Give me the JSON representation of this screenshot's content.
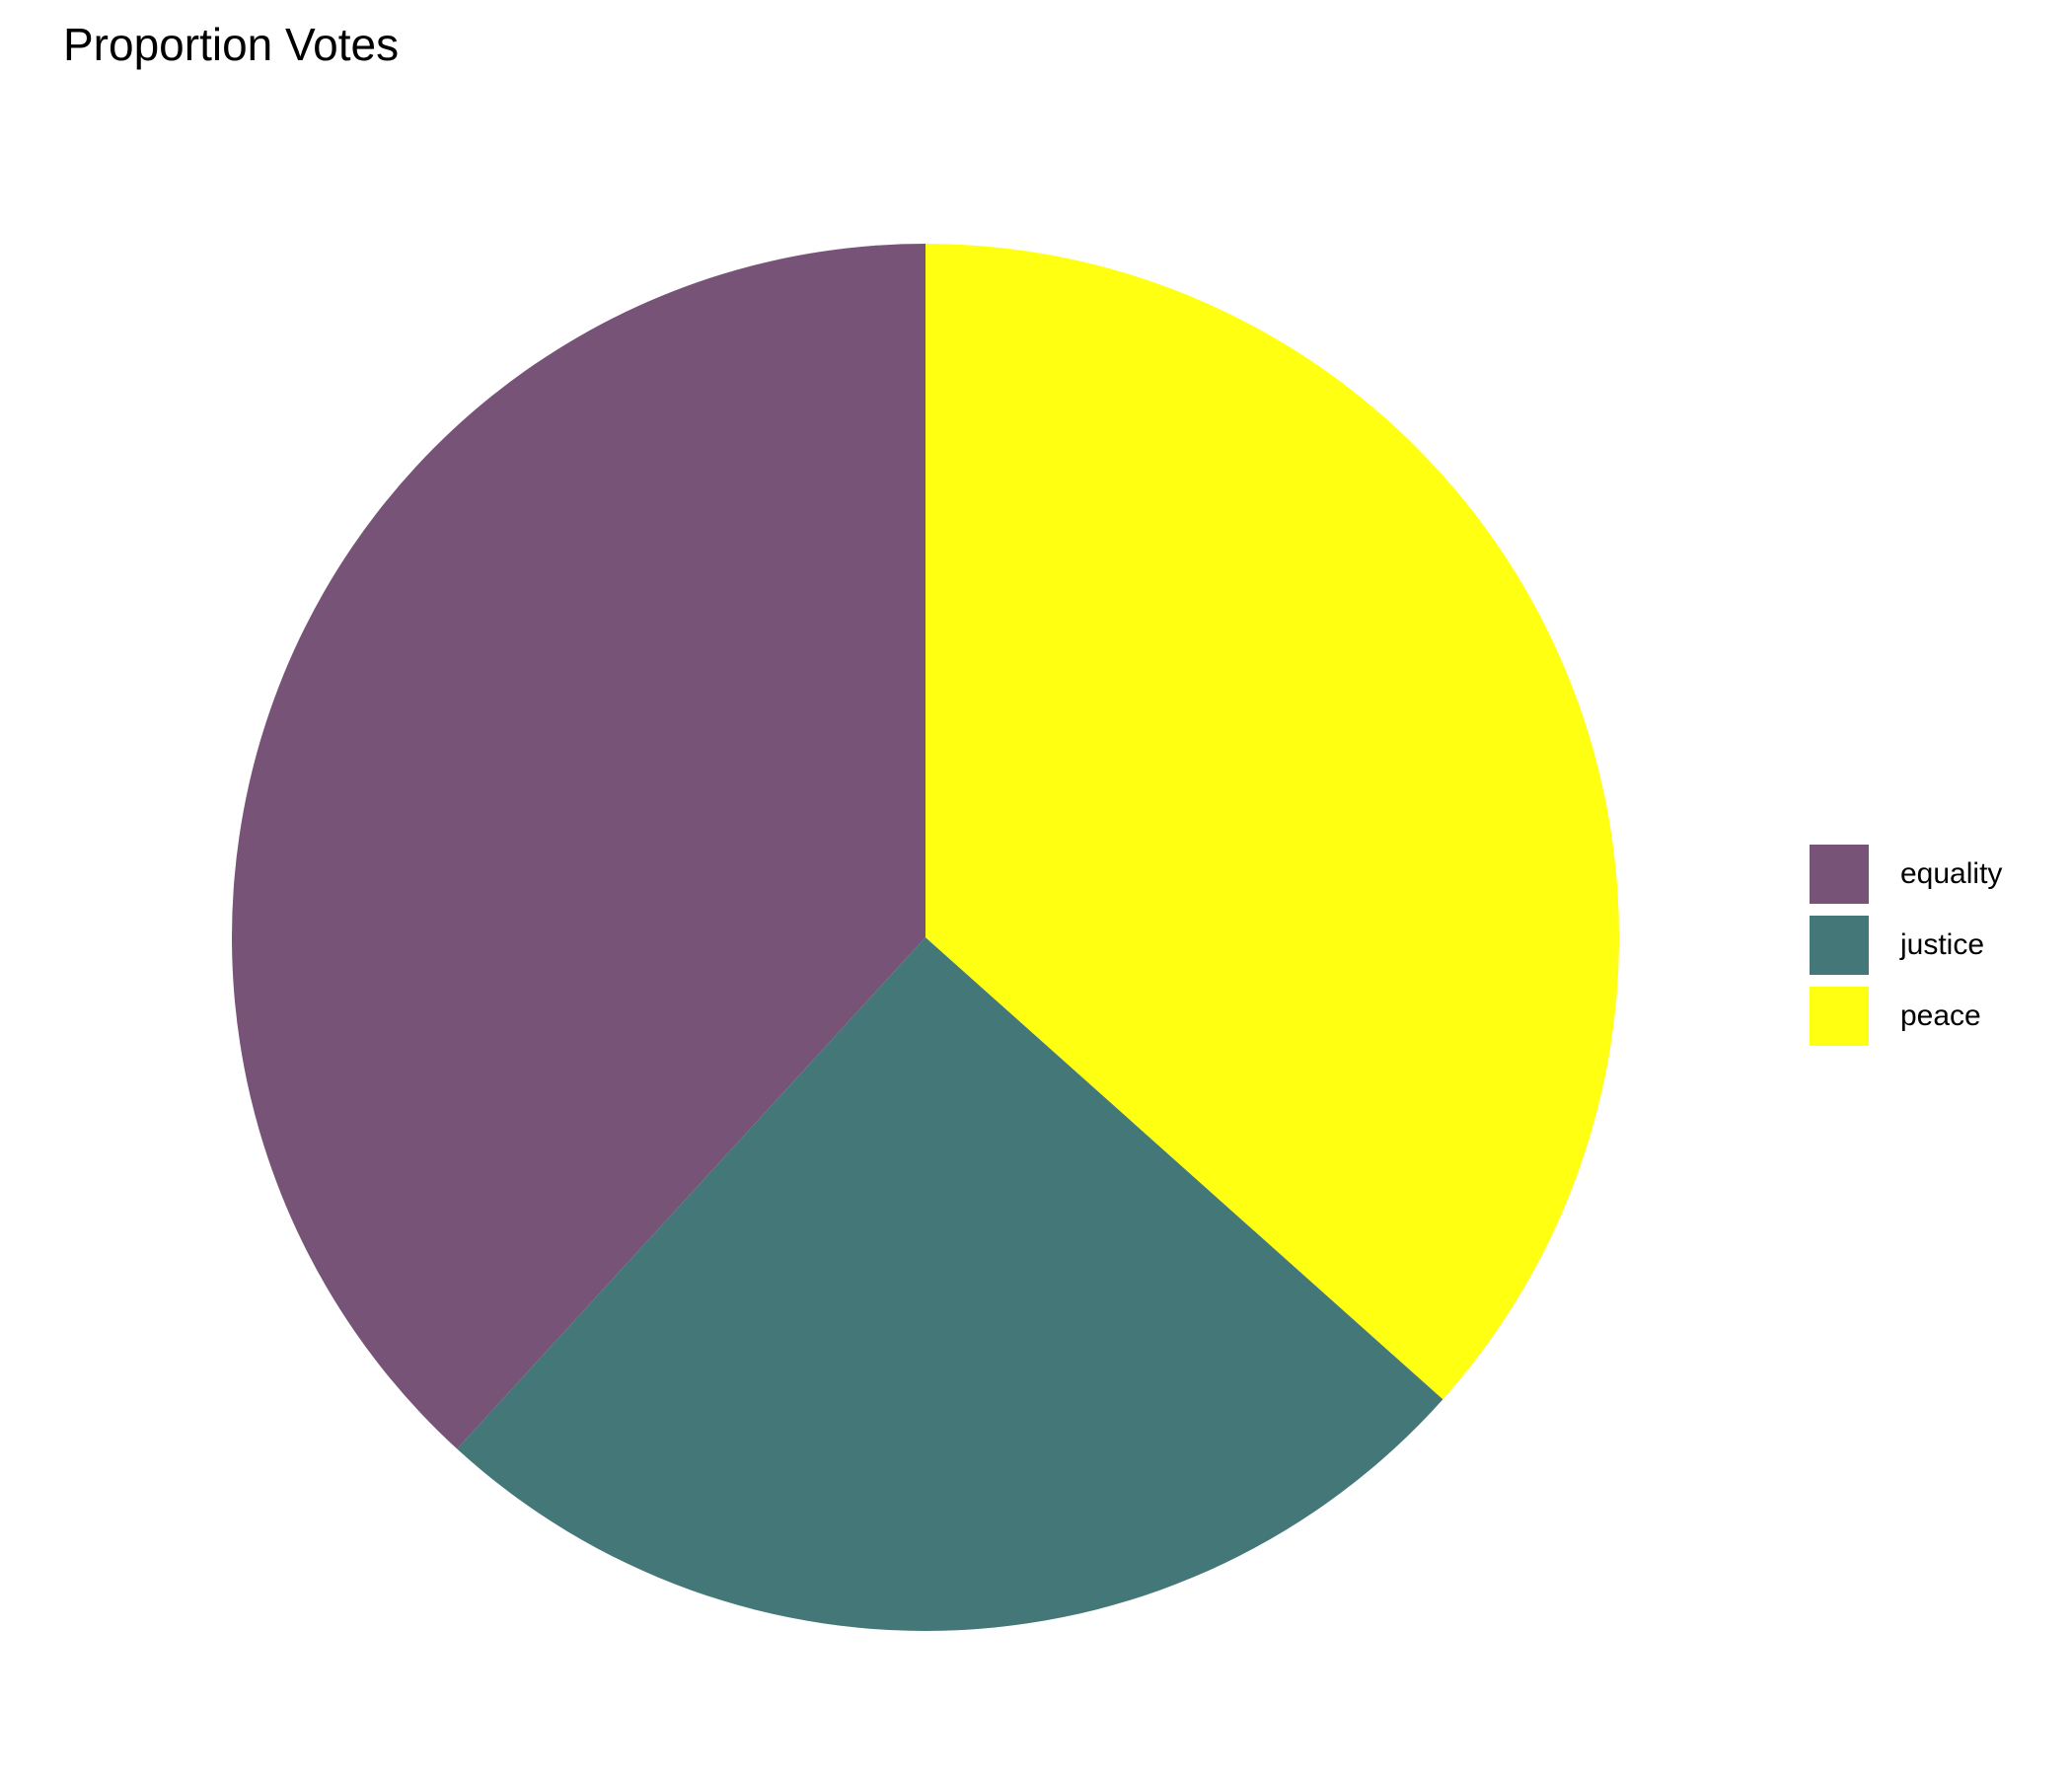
{
  "chart_data": {
    "type": "pie",
    "title": "Proportion Votes",
    "categories": [
      "equality",
      "justice",
      "peace"
    ],
    "values": [
      0.382,
      0.252,
      0.366
    ],
    "colors": [
      "#775377",
      "#447878",
      "#FFFF11"
    ],
    "start_angle_deg": 0,
    "direction": "counterclockwise",
    "legend_position": "right"
  }
}
